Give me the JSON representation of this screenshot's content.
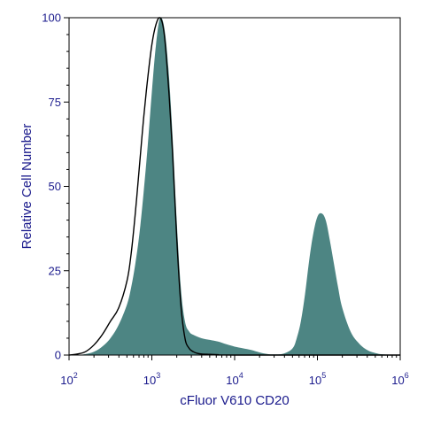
{
  "chart_data": {
    "type": "area",
    "title": "",
    "xlabel": "cFluor V610 CD20",
    "ylabel": "Relative Cell Number",
    "x_scale": "log",
    "xlim": [
      100,
      1000000
    ],
    "ylim": [
      0,
      100
    ],
    "x_ticks": [
      {
        "base": "10",
        "exp": "2"
      },
      {
        "base": "10",
        "exp": "3"
      },
      {
        "base": "10",
        "exp": "4"
      },
      {
        "base": "10",
        "exp": "5"
      },
      {
        "base": "10",
        "exp": "6"
      }
    ],
    "y_ticks": [
      "0",
      "25",
      "50",
      "75",
      "100"
    ],
    "grid": false,
    "legend": "none",
    "colors": {
      "stained": "#4d8583",
      "control": "#000000",
      "axis": "#1a1a8c"
    },
    "series": [
      {
        "style": "filled",
        "x": [
          100,
          126,
          158,
          200,
          251,
          316,
          398,
          501,
          562,
          631,
          708,
          794,
          891,
          1000,
          1122,
          1259,
          1413,
          1585,
          1778,
          1995,
          2239,
          2512,
          2818,
          3162,
          3981,
          5012,
          6310,
          7943,
          10000,
          12589,
          15849,
          19953,
          25119,
          31623,
          39811,
          50119,
          56234,
          63096,
          70795,
          79433,
          89125,
          100000,
          112202,
          125893,
          141254,
          158489,
          177828,
          199526,
          251189,
          316228,
          398107,
          501187,
          630957,
          1000000
        ],
        "y": [
          0,
          0,
          0.3,
          1,
          2.5,
          5,
          9,
          15,
          20,
          27,
          36,
          48,
          62,
          78,
          92,
          100,
          97,
          85,
          65,
          40,
          20,
          10,
          7,
          6,
          5,
          4.5,
          4,
          3.2,
          2.5,
          2,
          1.5,
          0.8,
          0.3,
          0.2,
          0.5,
          2,
          5,
          10,
          18,
          28,
          36,
          41,
          42,
          40,
          34,
          27,
          20,
          14,
          7,
          3.5,
          1.5,
          0.6,
          0.2,
          0
        ]
      },
      {
        "style": "outline",
        "x": [
          100,
          126,
          158,
          200,
          251,
          316,
          398,
          501,
          562,
          631,
          708,
          794,
          891,
          1000,
          1122,
          1259,
          1413,
          1585,
          1778,
          1995,
          2239,
          2512,
          2818,
          3162,
          3548,
          3981,
          5012,
          6310,
          10000,
          1000000
        ],
        "y": [
          0,
          0.3,
          1,
          3,
          6,
          10,
          14,
          22,
          30,
          42,
          56,
          70,
          82,
          92,
          98,
          100,
          95,
          80,
          60,
          35,
          15,
          5,
          2,
          1,
          0.5,
          0.3,
          0.2,
          0.1,
          0,
          0
        ]
      }
    ]
  }
}
